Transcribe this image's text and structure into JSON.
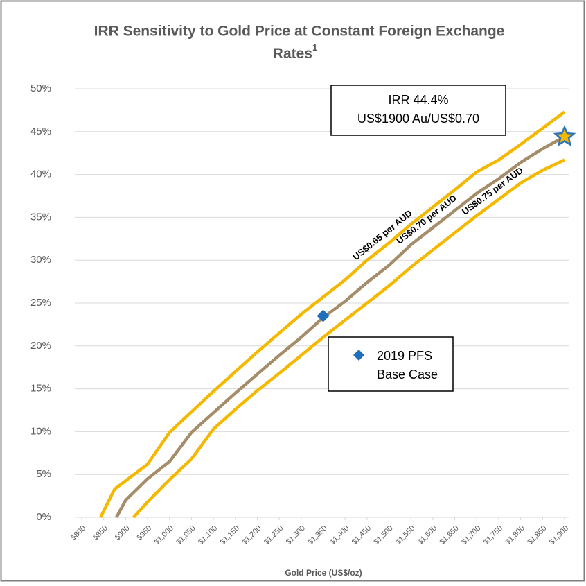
{
  "chart_data": {
    "type": "line",
    "title": [
      "IRR Sensitivity to Gold Price at Constant Foreign Exchange",
      "Rates"
    ],
    "title_sup": "1",
    "x_label": "Gold Price (US$/oz)",
    "xlim": [
      800,
      1900
    ],
    "xticks": [
      {
        "value": 800,
        "label": "$800"
      },
      {
        "value": 850,
        "label": "$850"
      },
      {
        "value": 900,
        "label": "$900"
      },
      {
        "value": 950,
        "label": "$950"
      },
      {
        "value": 1000,
        "label": "$1,000"
      },
      {
        "value": 1050,
        "label": "$1,050"
      },
      {
        "value": 1100,
        "label": "$1,100"
      },
      {
        "value": 1150,
        "label": "$1,150"
      },
      {
        "value": 1200,
        "label": "$1,200"
      },
      {
        "value": 1250,
        "label": "$1,250"
      },
      {
        "value": 1300,
        "label": "$1,300"
      },
      {
        "value": 1350,
        "label": "$1,350"
      },
      {
        "value": 1400,
        "label": "$1,400"
      },
      {
        "value": 1450,
        "label": "$1,450"
      },
      {
        "value": 1500,
        "label": "$1,500"
      },
      {
        "value": 1550,
        "label": "$1,550"
      },
      {
        "value": 1600,
        "label": "$1,600"
      },
      {
        "value": 1650,
        "label": "$1,650"
      },
      {
        "value": 1700,
        "label": "$1,700"
      },
      {
        "value": 1750,
        "label": "$1,750"
      },
      {
        "value": 1800,
        "label": "$1,800"
      },
      {
        "value": 1850,
        "label": "$1,850"
      },
      {
        "value": 1900,
        "label": "$1,900"
      }
    ],
    "ylim": [
      0,
      50
    ],
    "yticks": [
      {
        "value": 0,
        "label": "0%"
      },
      {
        "value": 5,
        "label": "5%"
      },
      {
        "value": 10,
        "label": "10%"
      },
      {
        "value": 15,
        "label": "15%"
      },
      {
        "value": 20,
        "label": "20%"
      },
      {
        "value": 25,
        "label": "25%"
      },
      {
        "value": 30,
        "label": "30%"
      },
      {
        "value": 35,
        "label": "35%"
      },
      {
        "value": 40,
        "label": "40%"
      },
      {
        "value": 45,
        "label": "45%"
      },
      {
        "value": 50,
        "label": "50%"
      }
    ],
    "grid": true,
    "series": [
      {
        "name": "US$0.65 per AUD",
        "color": "#f5b800",
        "x": [
          843,
          875,
          950,
          1000,
          1050,
          1100,
          1150,
          1200,
          1250,
          1300,
          1350,
          1400,
          1450,
          1500,
          1550,
          1600,
          1650,
          1700,
          1750,
          1800,
          1850,
          1900
        ],
        "values": [
          0,
          3.3,
          6.2,
          9.9,
          12.3,
          14.7,
          17,
          19.3,
          21.5,
          23.7,
          25.7,
          27.7,
          30,
          32,
          34.2,
          36.2,
          38.2,
          40.3,
          41.7,
          43.5,
          45.4,
          47.3
        ]
      },
      {
        "name": "US$0.70 per AUD",
        "color": "#a68d6a",
        "x": [
          879,
          900,
          950,
          1000,
          1050,
          1100,
          1150,
          1200,
          1250,
          1300,
          1350,
          1400,
          1450,
          1500,
          1550,
          1600,
          1650,
          1700,
          1750,
          1800,
          1850,
          1900
        ],
        "values": [
          0,
          2,
          4.5,
          6.5,
          9.9,
          12.2,
          14.5,
          16.7,
          18.9,
          21,
          23.3,
          25.2,
          27.4,
          29.4,
          31.8,
          33.8,
          35.8,
          37.8,
          39.5,
          41.4,
          43,
          44.4
        ]
      },
      {
        "name": "US$0.75 per AUD",
        "color": "#f5b800",
        "x": [
          918,
          950,
          1000,
          1050,
          1100,
          1150,
          1200,
          1250,
          1300,
          1350,
          1400,
          1450,
          1500,
          1550,
          1600,
          1650,
          1700,
          1750,
          1800,
          1850,
          1900
        ],
        "values": [
          0,
          1.8,
          4.4,
          6.8,
          10.3,
          12.6,
          14.8,
          16.8,
          18.9,
          21,
          23,
          25,
          27,
          29.2,
          31.2,
          33.2,
          35.2,
          37.1,
          39,
          40.5,
          41.7
        ]
      }
    ],
    "points": [
      {
        "shape": "star",
        "x": 1900,
        "y": 44.4,
        "color": "#2e75b6",
        "fill": "#f5b800",
        "label": [
          "IRR 44.4%",
          "US$1900 Au/US$0.70"
        ]
      },
      {
        "shape": "diamond",
        "x": 1350,
        "y": 23.5,
        "color": "#1f6fbf",
        "label": [
          "2019 PFS",
          "Base Case"
        ]
      }
    ]
  }
}
